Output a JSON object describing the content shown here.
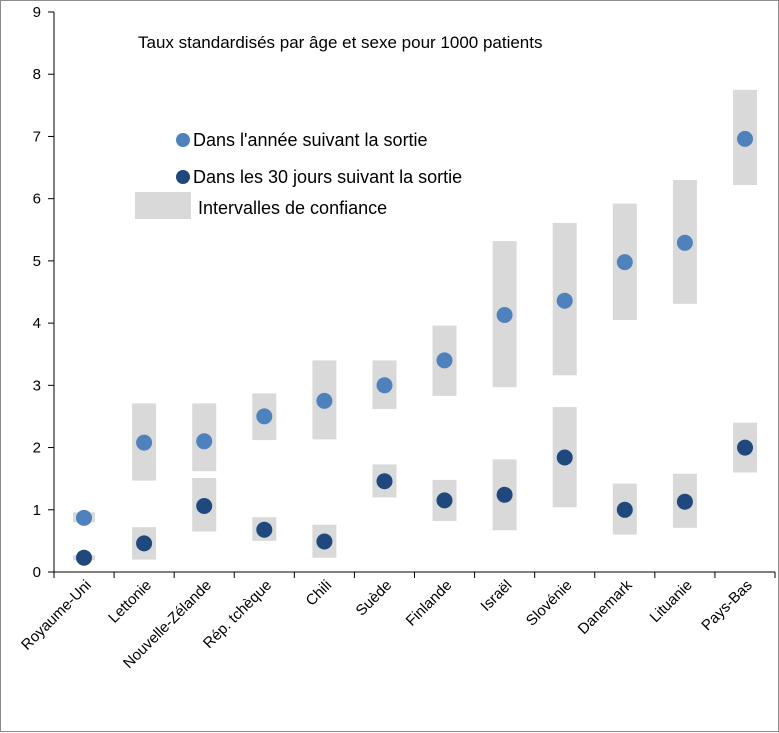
{
  "chart_data": {
    "type": "scatter",
    "title": "Taux standardisés par âge et sexe pour 1000 patients",
    "xlabel": "",
    "ylabel": "",
    "ylim": [
      0,
      9
    ],
    "yticks": [
      0,
      1,
      2,
      3,
      4,
      5,
      6,
      7,
      8,
      9
    ],
    "grid": false,
    "legend_position": "top-left",
    "categories": [
      "Royaume-Uni",
      "Lettonie",
      "Nouvelle-Zélande",
      "Rép. tchèque",
      "Chili",
      "Suède",
      "Finlande",
      "Israël",
      "Slovénie",
      "Danemark",
      "Lituanie",
      "Pays-Bas"
    ],
    "series": [
      {
        "name": "Dans l'année suivant la sortie",
        "color": "#4f81bd",
        "values": [
          0.87,
          2.08,
          2.1,
          2.5,
          2.75,
          3.0,
          3.4,
          4.13,
          4.36,
          4.98,
          5.29,
          6.96
        ],
        "ci_low": [
          0.8,
          1.47,
          1.62,
          2.12,
          2.13,
          2.62,
          2.83,
          2.97,
          3.16,
          4.05,
          4.31,
          6.22
        ],
        "ci_high": [
          0.96,
          2.71,
          2.71,
          2.87,
          3.4,
          3.4,
          3.96,
          5.32,
          5.61,
          5.92,
          6.3,
          7.75
        ]
      },
      {
        "name": "Dans les 30 jours suivant la sortie",
        "color": "#1f497d",
        "values": [
          0.23,
          0.46,
          1.06,
          0.68,
          0.49,
          1.46,
          1.15,
          1.24,
          1.84,
          1.0,
          1.13,
          2.0
        ],
        "ci_low": [
          0.19,
          0.2,
          0.65,
          0.5,
          0.23,
          1.2,
          0.82,
          0.67,
          1.04,
          0.6,
          0.71,
          1.6
        ],
        "ci_high": [
          0.27,
          0.72,
          1.51,
          0.88,
          0.76,
          1.73,
          1.48,
          1.81,
          2.65,
          1.42,
          1.58,
          2.4
        ]
      }
    ],
    "confidence_label": "Intervalles de confiance",
    "colors": {
      "confidence_band": "#d9d9d9",
      "axis": "#000000"
    }
  }
}
